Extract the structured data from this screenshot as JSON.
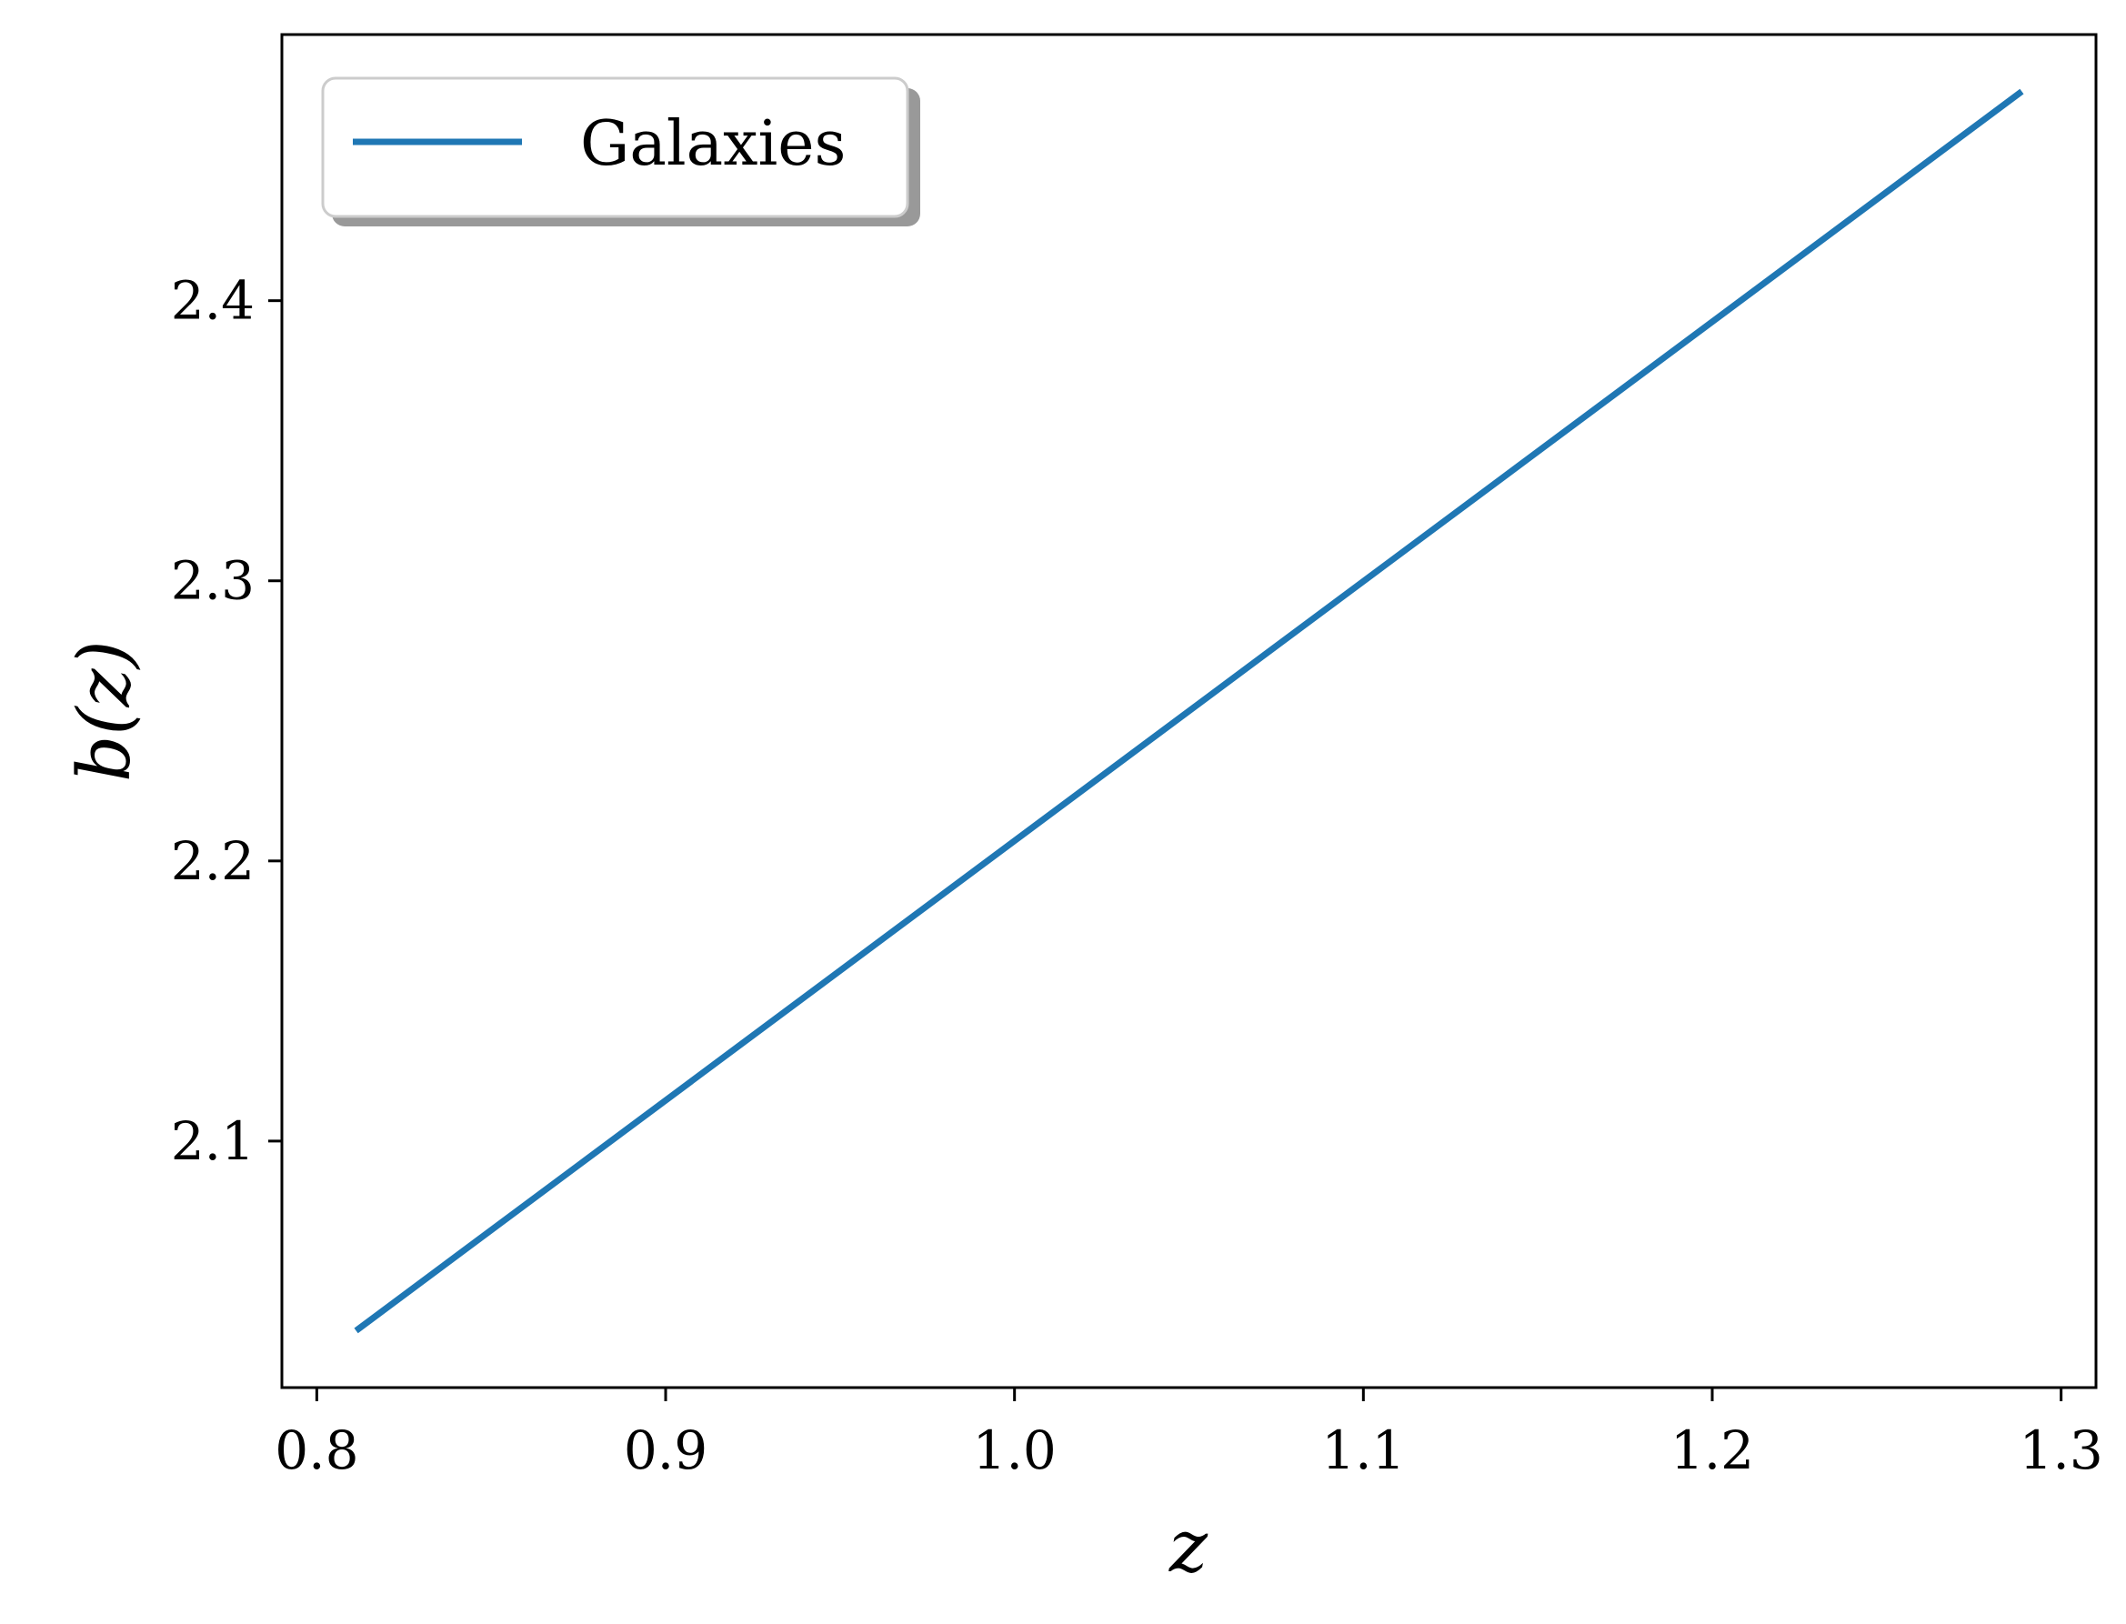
{
  "chart_data": {
    "type": "line",
    "xlabel": "z",
    "ylabel": "b(z)",
    "xlim": [
      0.79,
      1.31
    ],
    "ylim": [
      2.012,
      2.495
    ],
    "xticks": [
      0.8,
      0.9,
      1.0,
      1.1,
      1.2,
      1.3
    ],
    "xtick_labels": [
      "0.8",
      "0.9",
      "1.0",
      "1.1",
      "1.2",
      "1.3"
    ],
    "yticks": [
      2.1,
      2.2,
      2.3,
      2.4
    ],
    "ytick_labels": [
      "2.1",
      "2.2",
      "2.3",
      "2.4"
    ],
    "grid": false,
    "legend": {
      "placement": "top-left"
    },
    "series": [
      {
        "name": "Galaxies",
        "color": "#1f77b4",
        "x": [
          0.812,
          1.288
        ],
        "y": [
          2.033,
          2.474
        ]
      }
    ]
  }
}
